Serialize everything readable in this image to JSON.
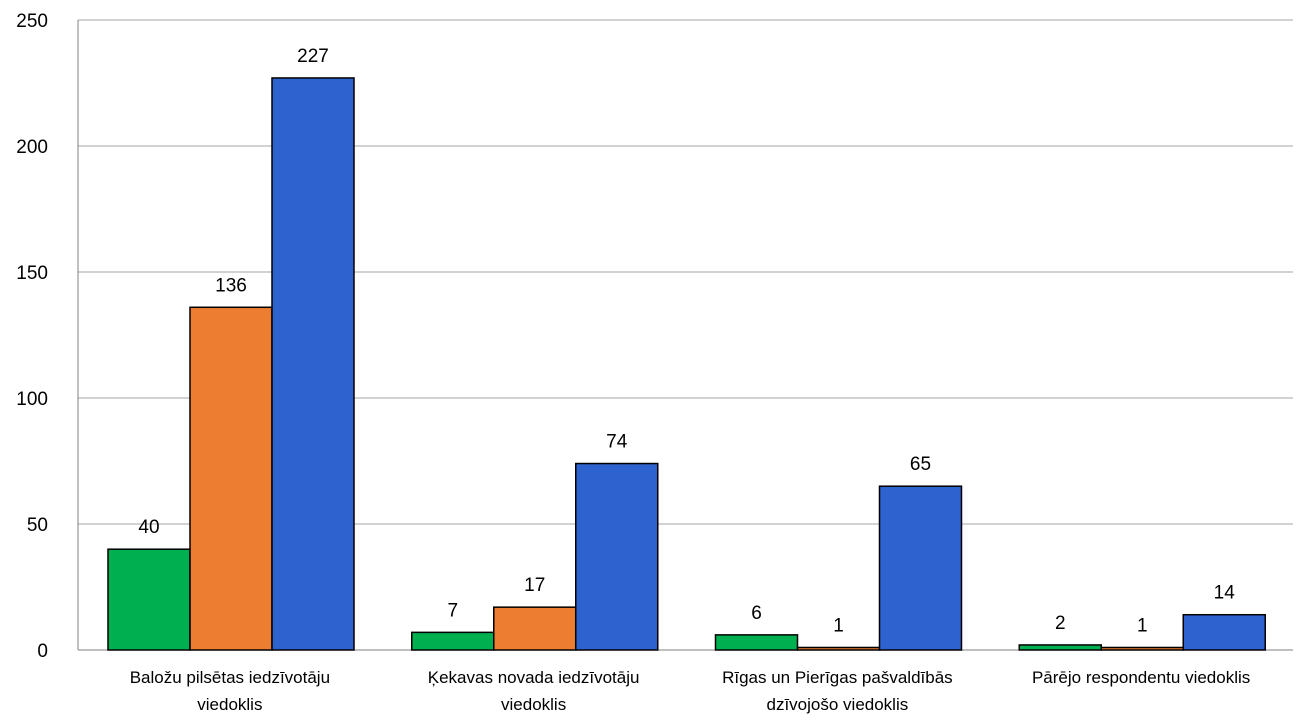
{
  "chart_data": {
    "type": "bar",
    "title": "",
    "xlabel": "",
    "ylabel": "",
    "ylim": [
      0,
      250
    ],
    "yticks": [
      0,
      50,
      100,
      150,
      200,
      250
    ],
    "grid": true,
    "legend": "none",
    "categories": [
      [
        "Baložu pilsētas iedzīvotāju",
        "viedoklis"
      ],
      [
        "Ķekavas novada iedzīvotāju",
        "viedoklis"
      ],
      [
        "Rīgas un Pierīgas pašvaldībās",
        "dzīvojošo viedoklis"
      ],
      [
        "Pārējo respondentu viedoklis"
      ]
    ],
    "series": [
      {
        "color": "#00b050",
        "values": [
          40,
          7,
          6,
          2
        ]
      },
      {
        "color": "#ed7d31",
        "values": [
          136,
          17,
          1,
          1
        ]
      },
      {
        "color": "#2e63cf",
        "values": [
          227,
          74,
          65,
          14
        ]
      }
    ]
  }
}
